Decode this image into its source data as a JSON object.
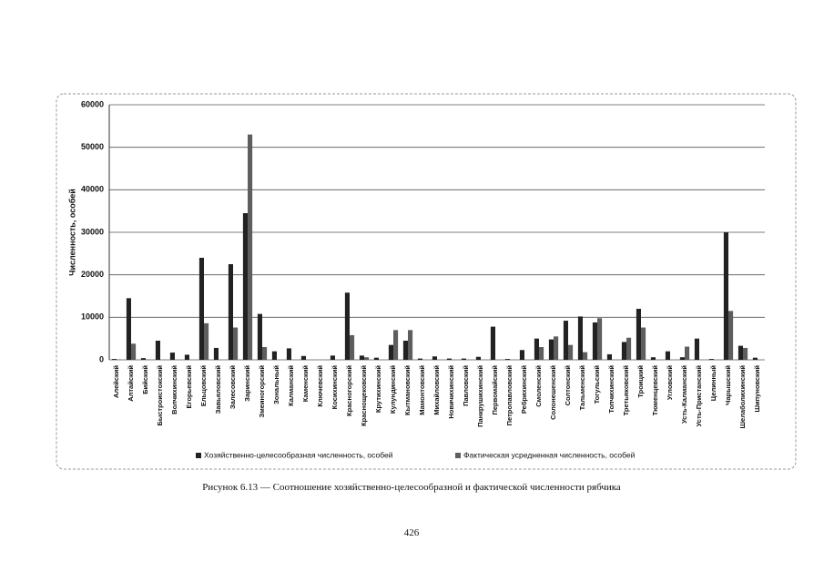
{
  "chart_data": {
    "type": "bar",
    "y_label": "Численность, особей",
    "categories": [
      "Алейский",
      "Алтайский",
      "Бийский",
      "Быстроистокский",
      "Волчихинский",
      "Егорьевский",
      "Ельцовский",
      "Завьяловский",
      "Залесовский",
      "Заринский",
      "Змеиногорский",
      "Зональный",
      "Калманский",
      "Каменский",
      "Ключевский",
      "Косихинский",
      "Красногорский",
      "Краснощековский",
      "Крутихинский",
      "Кулундинский",
      "Кытмановский",
      "Мамонтовский",
      "Михайловский",
      "Новичихинский",
      "Павловский",
      "Панкрушихинский",
      "Первомайский",
      "Петропавловский",
      "Ребрихинский",
      "Смоленский",
      "Солонешенский",
      "Солтонский",
      "Тальменский",
      "Тогульский",
      "Топчихинский",
      "Третьяковский",
      "Троицкий",
      "Тюменцевский",
      "Угловский",
      "Усть-Калманский",
      "Усть-Пристанский",
      "Целинный",
      "Чарышский",
      "Шелаболихинский",
      "Шипуновский"
    ],
    "series": [
      {
        "name": "Хозяйственно-целесообразная численность, особей",
        "color": "#222222",
        "values": [
          200,
          14500,
          400,
          4500,
          1700,
          1200,
          24000,
          2800,
          22500,
          34500,
          10800,
          2000,
          2700,
          900,
          0,
          1000,
          15800,
          1000,
          500,
          3500,
          4500,
          300,
          800,
          300,
          300,
          700,
          7800,
          200,
          2300,
          5000,
          4800,
          9200,
          10200,
          8800,
          1300,
          4200,
          12000,
          600,
          2000,
          600,
          5000,
          200,
          30000,
          3300,
          500
        ]
      },
      {
        "name": "Фактическая усредненная численность, особей",
        "color": "#5e5e5e",
        "values": [
          100,
          3800,
          100,
          0,
          0,
          0,
          8600,
          0,
          7600,
          53000,
          3000,
          0,
          0,
          0,
          0,
          0,
          5800,
          600,
          0,
          7000,
          7000,
          0,
          0,
          0,
          0,
          0,
          0,
          0,
          0,
          3000,
          5500,
          3500,
          1800,
          9800,
          0,
          5200,
          7600,
          0,
          0,
          3100,
          0,
          0,
          11500,
          2800,
          0
        ]
      }
    ],
    "ylim": [
      0,
      60000
    ],
    "yticks": [
      0,
      10000,
      20000,
      30000,
      40000,
      50000,
      60000
    ],
    "grid": true,
    "legend": "bottom"
  },
  "caption": "Рисунок 6.13 — Соотношение хозяйственно-целесообразной и фактической численности рябчика",
  "page_number": "426"
}
